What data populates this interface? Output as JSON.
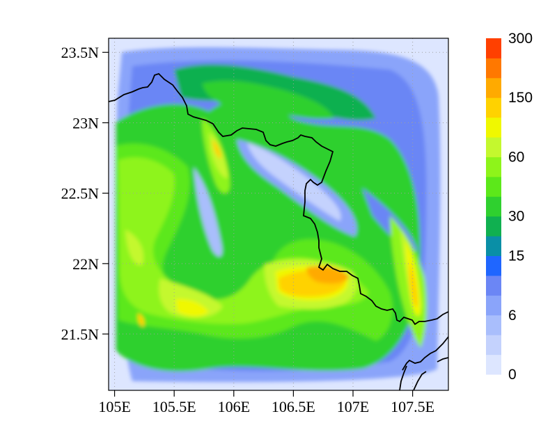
{
  "map": {
    "lon_range": [
      104.95,
      107.8
    ],
    "lat_range": [
      21.1,
      23.6
    ],
    "lon_ticks": [
      {
        "value": 105.0,
        "label": "105E"
      },
      {
        "value": 105.5,
        "label": "105.5E"
      },
      {
        "value": 106.0,
        "label": "106E"
      },
      {
        "value": 106.5,
        "label": "106.5E"
      },
      {
        "value": 107.0,
        "label": "107E"
      },
      {
        "value": 107.5,
        "label": "107.5E"
      }
    ],
    "lat_ticks": [
      {
        "value": 23.5,
        "label": "23.5N"
      },
      {
        "value": 23.0,
        "label": "23N"
      },
      {
        "value": 22.5,
        "label": "22.5N"
      },
      {
        "value": 22.0,
        "label": "22N"
      },
      {
        "value": 21.5,
        "label": "21.5N"
      }
    ],
    "grid": "dotted",
    "background": "#dde6ff"
  },
  "colorbar": {
    "colors": [
      "#dde6ff",
      "#c4d2fd",
      "#a9befc",
      "#8aa4fa",
      "#6b86f5",
      "#1f66ff",
      "#0a8fa6",
      "#10b050",
      "#2fd02f",
      "#5ce81a",
      "#8ef41a",
      "#c4f82e",
      "#f0f800",
      "#ffd200",
      "#ffaa00",
      "#ff7800",
      "#ff4000"
    ],
    "labels": [
      {
        "index": 0,
        "text": "0"
      },
      {
        "index": 2,
        "text": "6"
      },
      {
        "index": 5,
        "text": "15"
      },
      {
        "index": 7,
        "text": "30"
      },
      {
        "index": 10,
        "text": "60"
      },
      {
        "index": 13,
        "text": "150"
      },
      {
        "index": 16,
        "text": "300"
      }
    ]
  },
  "field_features": [
    {
      "lon": 106.7,
      "lat": 21.82,
      "level": 15,
      "desc": "orange core"
    },
    {
      "lon": 107.5,
      "lat": 21.75,
      "level": 13
    },
    {
      "lon": 105.5,
      "lat": 21.7,
      "level": 13
    },
    {
      "lon": 105.85,
      "lat": 22.8,
      "level": 12
    },
    {
      "lon": 105.1,
      "lat": 21.6,
      "level": 12
    }
  ]
}
